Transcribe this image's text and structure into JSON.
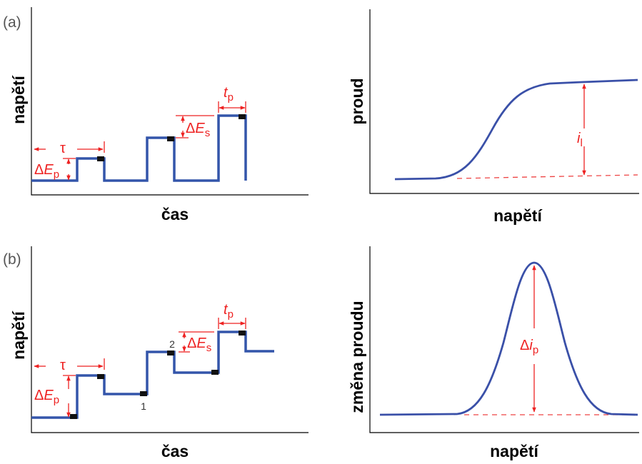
{
  "panels": {
    "a": {
      "label": "(a)",
      "left": {
        "xlabel": "čas",
        "ylabel": "napětí",
        "tau": "τ",
        "delta_ep_delta": "Δ",
        "delta_ep_E": "E",
        "delta_ep_sub": "p",
        "delta_es_delta": "Δ",
        "delta_es_E": "E",
        "delta_es_sub": "s",
        "tp_t": "t",
        "tp_sub": "p"
      },
      "right": {
        "xlabel": "napětí",
        "ylabel": "proud",
        "il_i": "i",
        "il_sub": "l"
      }
    },
    "b": {
      "label": "(b)",
      "left": {
        "xlabel": "čas",
        "ylabel": "napětí",
        "tau": "τ",
        "delta_ep_delta": "Δ",
        "delta_ep_E": "E",
        "delta_ep_sub": "p",
        "delta_es_delta": "Δ",
        "delta_es_E": "E",
        "delta_es_sub": "s",
        "tp_t": "t",
        "tp_sub": "p",
        "point1": "1",
        "point2": "2"
      },
      "right": {
        "xlabel": "napětí",
        "ylabel": "změna proudu",
        "dip_delta": "Δ",
        "dip_i": "i",
        "dip_sub": "p"
      }
    }
  },
  "colors": {
    "waveform": "#3355aa",
    "annotation": "#ee2222",
    "sample_marker": "#111111",
    "axis": "#000000"
  }
}
